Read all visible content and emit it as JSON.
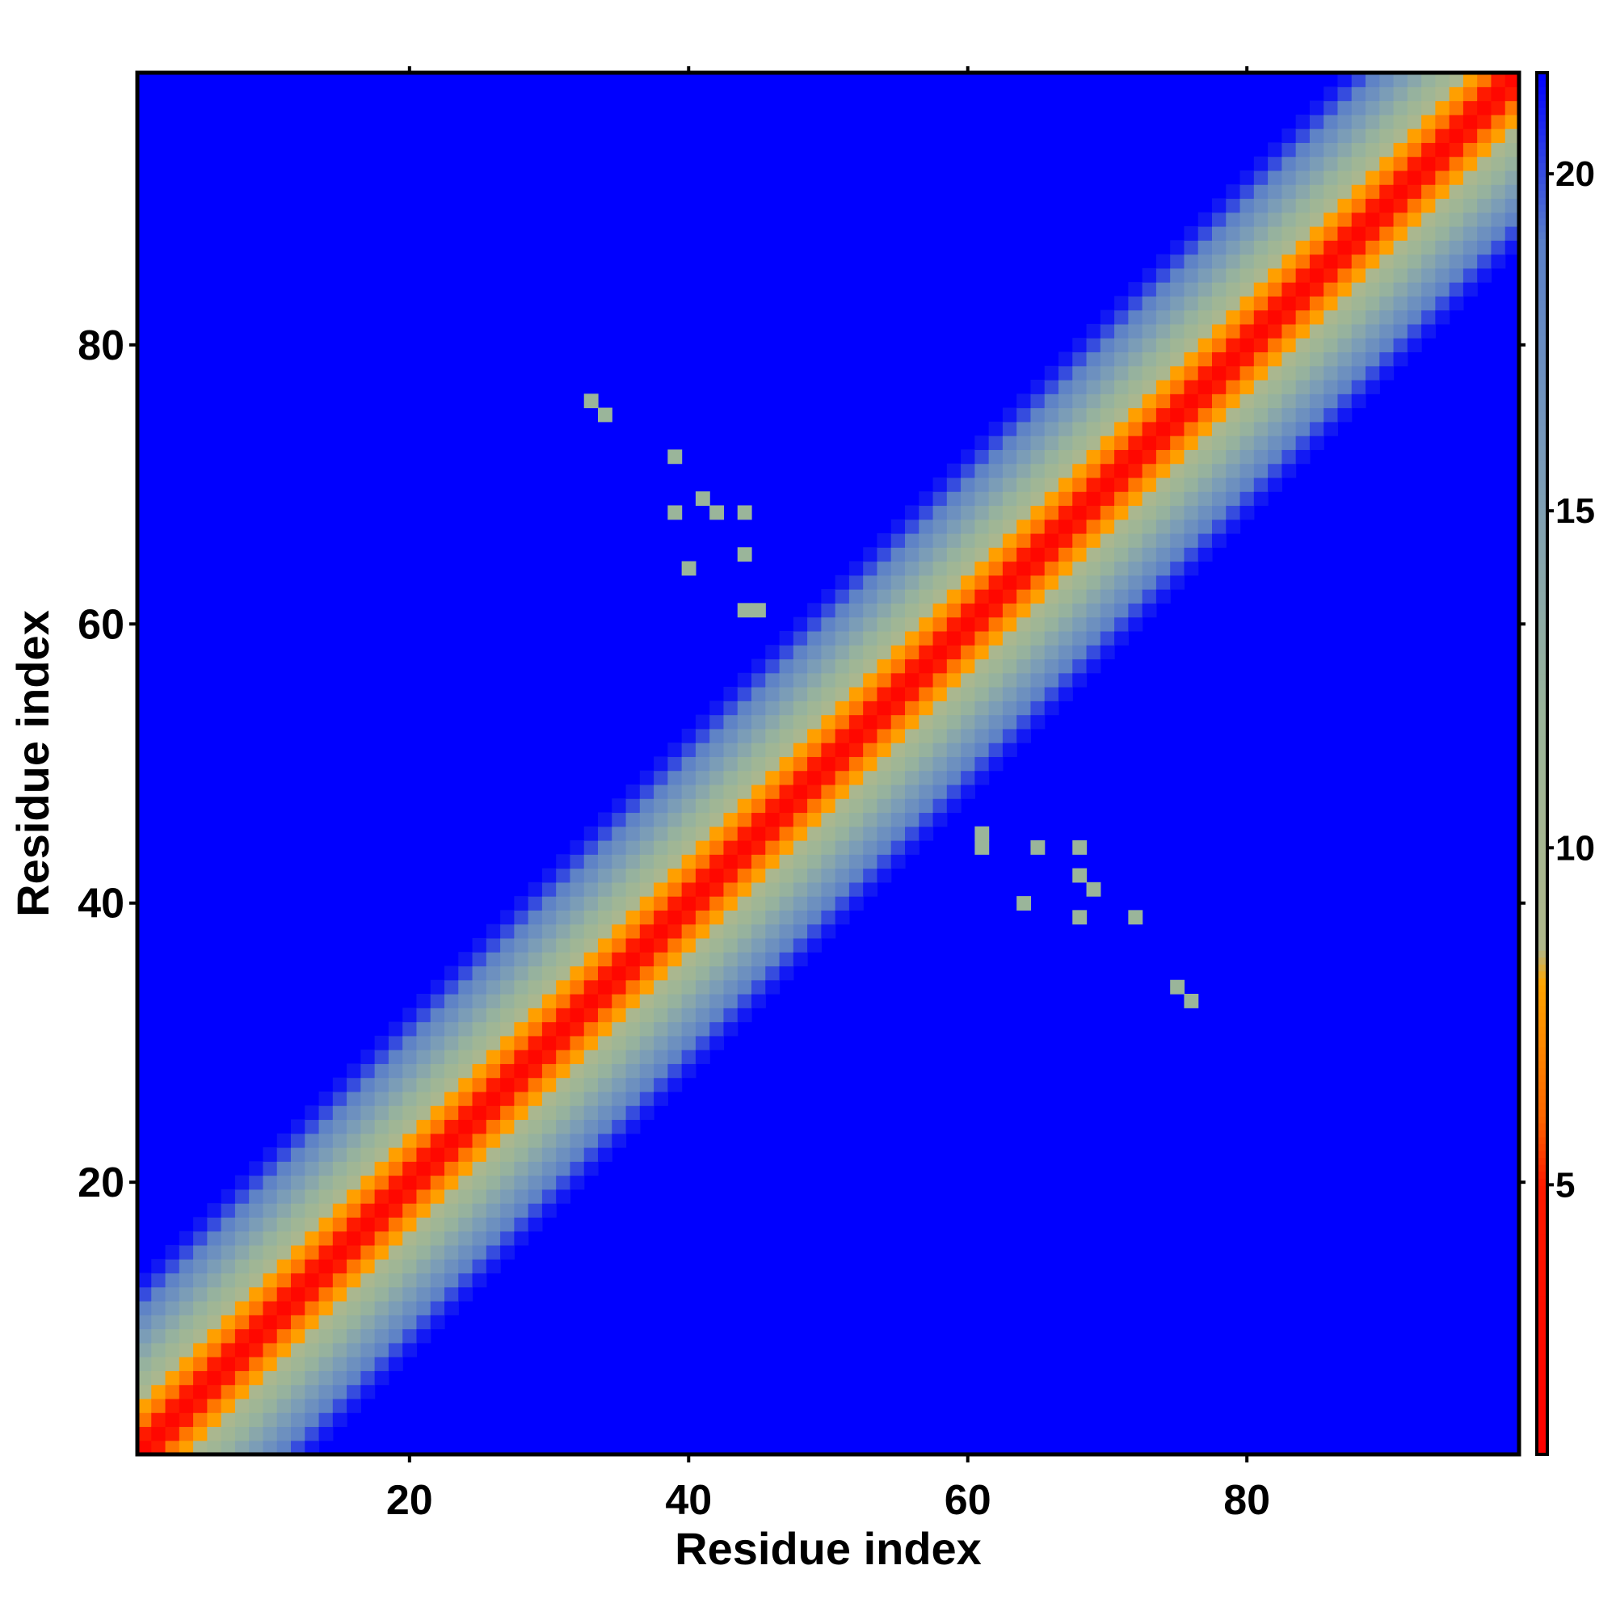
{
  "chart_data": {
    "type": "heatmap",
    "title": "",
    "xlabel": "Residue index",
    "ylabel": "Residue index",
    "x_range": [
      1,
      99
    ],
    "y_range": [
      1,
      99
    ],
    "xticks": [
      20,
      40,
      60,
      80
    ],
    "yticks": [
      20,
      40,
      60,
      80
    ],
    "value_range": [
      1,
      21.5
    ],
    "colorbar": {
      "ticks": [
        5,
        10,
        15,
        20
      ],
      "stops": [
        {
          "value": 1.0,
          "color": "#ff0000"
        },
        {
          "value": 5.0,
          "color": "#ff1a00"
        },
        {
          "value": 6.0,
          "color": "#ff6600"
        },
        {
          "value": 8.0,
          "color": "#ffa500"
        },
        {
          "value": 8.5,
          "color": "#b0b88a"
        },
        {
          "value": 12.0,
          "color": "#9ab59a"
        },
        {
          "value": 16.0,
          "color": "#7799bb"
        },
        {
          "value": 19.0,
          "color": "#5a7fc8"
        },
        {
          "value": 21.5,
          "color": "#0000ff"
        }
      ],
      "above_color": "#0000ff"
    },
    "description": "Pairwise residue distance map, symmetric; values grow with |i - j| and saturate above the colour range",
    "band_profile": [
      {
        "offset": 0,
        "value": 2.0
      },
      {
        "offset": 1,
        "value": 5.0
      },
      {
        "offset": 2,
        "value": 6.5
      },
      {
        "offset": 3,
        "value": 7.8
      },
      {
        "offset": 4,
        "value": 9.5
      },
      {
        "offset": 5,
        "value": 11.0
      },
      {
        "offset": 6,
        "value": 12.5
      },
      {
        "offset": 7,
        "value": 14.0
      },
      {
        "offset": 8,
        "value": 15.5
      },
      {
        "offset": 9,
        "value": 17.0
      },
      {
        "offset": 10,
        "value": 18.5
      },
      {
        "offset": 11,
        "value": 20.0
      },
      {
        "offset": 12,
        "value": 21.0
      }
    ],
    "scattered_contacts": [
      {
        "i": 33,
        "j": 76,
        "value": 12
      },
      {
        "i": 34,
        "j": 75,
        "value": 12
      },
      {
        "i": 39,
        "j": 72,
        "value": 12
      },
      {
        "i": 39,
        "j": 68,
        "value": 12
      },
      {
        "i": 41,
        "j": 69,
        "value": 12
      },
      {
        "i": 42,
        "j": 68,
        "value": 12
      },
      {
        "i": 44,
        "j": 68,
        "value": 12
      },
      {
        "i": 44,
        "j": 65,
        "value": 12
      },
      {
        "i": 40,
        "j": 64,
        "value": 12
      },
      {
        "i": 44,
        "j": 61,
        "value": 12
      },
      {
        "i": 45,
        "j": 61,
        "value": 12
      }
    ]
  }
}
